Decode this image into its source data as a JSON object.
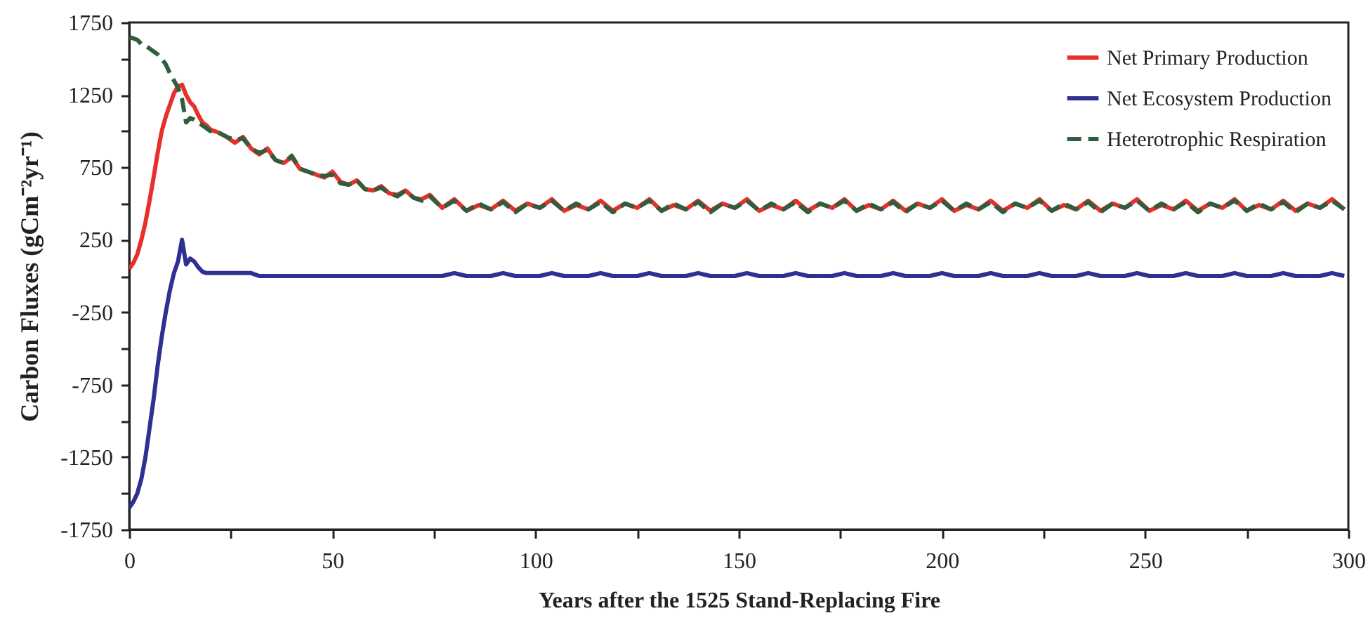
{
  "chart_data": {
    "type": "line",
    "xlabel": "Years after the 1525 Stand-Replacing Fire",
    "ylabel": "Carbon Fluxes (gCm⁻²yr⁻¹)",
    "x": [
      0,
      1,
      2,
      3,
      4,
      5,
      6,
      7,
      8,
      9,
      10,
      11,
      12,
      13,
      14,
      15,
      16,
      17,
      18,
      19,
      20,
      22,
      24,
      26,
      28,
      30,
      32,
      34,
      36,
      38,
      40,
      42,
      44,
      46,
      48,
      50,
      52,
      54,
      56,
      58,
      60,
      62,
      64,
      66,
      68,
      70,
      72,
      74,
      77,
      80,
      83,
      86,
      89,
      92,
      95,
      98,
      101,
      104,
      107,
      110,
      113,
      116,
      119,
      122,
      125,
      128,
      131,
      134,
      137,
      140,
      143,
      146,
      149,
      152,
      155,
      158,
      161,
      164,
      167,
      170,
      173,
      176,
      179,
      182,
      185,
      188,
      191,
      194,
      197,
      200,
      203,
      206,
      209,
      212,
      215,
      218,
      221,
      224,
      227,
      230,
      233,
      236,
      239,
      242,
      245,
      248,
      251,
      254,
      257,
      260,
      263,
      266,
      269,
      272,
      275,
      278,
      281,
      284,
      287,
      290,
      293,
      296,
      299
    ],
    "series": [
      {
        "name": "Net Primary Production",
        "color": "#e8302a",
        "line_style": "solid",
        "values": [
          50,
          90,
          150,
          250,
          370,
          520,
          680,
          850,
          1000,
          1100,
          1180,
          1260,
          1310,
          1320,
          1250,
          1200,
          1170,
          1110,
          1060,
          1040,
          1010,
          990,
          960,
          920,
          960,
          880,
          840,
          880,
          800,
          780,
          820,
          740,
          720,
          700,
          680,
          720,
          650,
          630,
          660,
          600,
          590,
          620,
          570,
          560,
          590,
          540,
          530,
          560,
          470,
          530,
          450,
          490,
          460,
          520,
          450,
          500,
          470,
          530,
          450,
          490,
          460,
          520,
          450,
          500,
          470,
          530,
          450,
          490,
          460,
          520,
          450,
          500,
          470,
          530,
          450,
          490,
          460,
          520,
          450,
          500,
          470,
          530,
          450,
          490,
          460,
          520,
          450,
          500,
          470,
          530,
          450,
          490,
          460,
          520,
          450,
          500,
          470,
          530,
          450,
          490,
          460,
          520,
          450,
          500,
          470,
          530,
          450,
          490,
          460,
          520,
          450,
          500,
          470,
          530,
          450,
          490,
          460,
          520,
          450,
          500,
          470,
          530,
          460
        ]
      },
      {
        "name": "Net Ecosystem Production",
        "color": "#2e3192",
        "line_style": "solid",
        "values": [
          -1600,
          -1560,
          -1500,
          -1400,
          -1250,
          -1050,
          -850,
          -620,
          -420,
          -250,
          -100,
          20,
          100,
          250,
          80,
          120,
          100,
          60,
          30,
          20,
          20,
          20,
          20,
          20,
          20,
          20,
          0,
          0,
          0,
          0,
          0,
          0,
          0,
          0,
          0,
          0,
          0,
          0,
          0,
          0,
          0,
          0,
          0,
          0,
          0,
          0,
          0,
          0,
          0,
          20,
          0,
          0,
          0,
          20,
          0,
          0,
          0,
          20,
          0,
          0,
          0,
          20,
          0,
          0,
          0,
          20,
          0,
          0,
          0,
          20,
          0,
          0,
          0,
          20,
          0,
          0,
          0,
          20,
          0,
          0,
          0,
          20,
          0,
          0,
          0,
          20,
          0,
          0,
          0,
          20,
          0,
          0,
          0,
          20,
          0,
          0,
          0,
          20,
          0,
          0,
          0,
          20,
          0,
          0,
          0,
          20,
          0,
          0,
          0,
          20,
          0,
          0,
          0,
          20,
          0,
          0,
          0,
          20,
          0,
          0,
          0,
          20,
          0
        ]
      },
      {
        "name": "Heterotrophic Respiration",
        "color": "#2f5e3e",
        "line_style": "dashed",
        "values": [
          1650,
          1640,
          1630,
          1600,
          1590,
          1570,
          1550,
          1530,
          1500,
          1460,
          1400,
          1350,
          1300,
          1220,
          1060,
          1090,
          1080,
          1060,
          1040,
          1020,
          1000,
          990,
          960,
          940,
          950,
          880,
          850,
          870,
          800,
          780,
          830,
          740,
          720,
          700,
          690,
          700,
          640,
          630,
          660,
          600,
          590,
          610,
          570,
          550,
          590,
          540,
          520,
          550,
          470,
          520,
          450,
          500,
          460,
          510,
          440,
          500,
          470,
          520,
          450,
          500,
          460,
          510,
          440,
          500,
          470,
          520,
          450,
          500,
          460,
          510,
          440,
          500,
          470,
          520,
          450,
          500,
          460,
          510,
          440,
          500,
          470,
          520,
          450,
          500,
          460,
          510,
          440,
          500,
          470,
          520,
          450,
          500,
          460,
          510,
          440,
          500,
          470,
          520,
          450,
          500,
          460,
          510,
          440,
          500,
          470,
          520,
          450,
          500,
          460,
          510,
          440,
          500,
          470,
          520,
          450,
          500,
          460,
          510,
          440,
          500,
          470,
          520,
          460
        ]
      }
    ],
    "xlim": [
      0,
      300
    ],
    "xticks": [
      0,
      {
        "value": 25,
        "label": null
      },
      50,
      {
        "value": 75,
        "label": null
      },
      100,
      {
        "value": 125,
        "label": null
      },
      150,
      {
        "value": 175,
        "label": null
      },
      200,
      {
        "value": 225,
        "label": null
      },
      250,
      {
        "value": 275,
        "label": null
      },
      300
    ],
    "ylim": [
      -1750,
      1750
    ],
    "yticks": [
      -1750,
      {
        "value": -1500,
        "label": null
      },
      -1250,
      {
        "value": -1000,
        "label": null
      },
      -750,
      {
        "value": -500,
        "label": null
      },
      -250,
      {
        "value": 0,
        "label": null
      },
      250,
      {
        "value": 500,
        "label": null
      },
      750,
      {
        "value": 1000,
        "label": null
      },
      1250,
      {
        "value": 1500,
        "label": null
      },
      1750
    ],
    "grid": false,
    "legend": "top right"
  }
}
